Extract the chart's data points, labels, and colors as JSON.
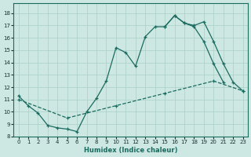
{
  "xlabel": "Humidex (Indice chaleur)",
  "xlim": [
    -0.5,
    23.5
  ],
  "ylim": [
    8,
    18.8
  ],
  "yticks": [
    8,
    9,
    10,
    11,
    12,
    13,
    14,
    15,
    16,
    17,
    18
  ],
  "xticks": [
    0,
    1,
    2,
    3,
    4,
    5,
    6,
    7,
    8,
    9,
    10,
    11,
    12,
    13,
    14,
    15,
    16,
    17,
    18,
    19,
    20,
    21,
    22,
    23
  ],
  "bg_color": "#cde8e2",
  "grid_color": "#aacfc8",
  "line_color": "#1a6b60",
  "line1_x": [
    0,
    1,
    2,
    3,
    4,
    5,
    6,
    7,
    8,
    9,
    10,
    11,
    12,
    13,
    14,
    15,
    16,
    17,
    18,
    19,
    20,
    21
  ],
  "line1_y": [
    11.3,
    10.5,
    9.9,
    8.9,
    8.7,
    8.6,
    8.4,
    10.0,
    11.1,
    12.5,
    15.2,
    14.8,
    13.7,
    16.1,
    16.9,
    16.9,
    17.8,
    17.2,
    16.9,
    15.7,
    13.9,
    12.4
  ],
  "line2_x": [
    0,
    5,
    10,
    15,
    20,
    23
  ],
  "line2_y": [
    11.0,
    9.5,
    10.5,
    11.5,
    12.5,
    11.7
  ],
  "line3_x": [
    15,
    16,
    17,
    18,
    19,
    20,
    21,
    22,
    23
  ],
  "line3_y": [
    16.9,
    17.8,
    17.2,
    17.0,
    17.3,
    15.7,
    13.9,
    12.4,
    11.7
  ]
}
